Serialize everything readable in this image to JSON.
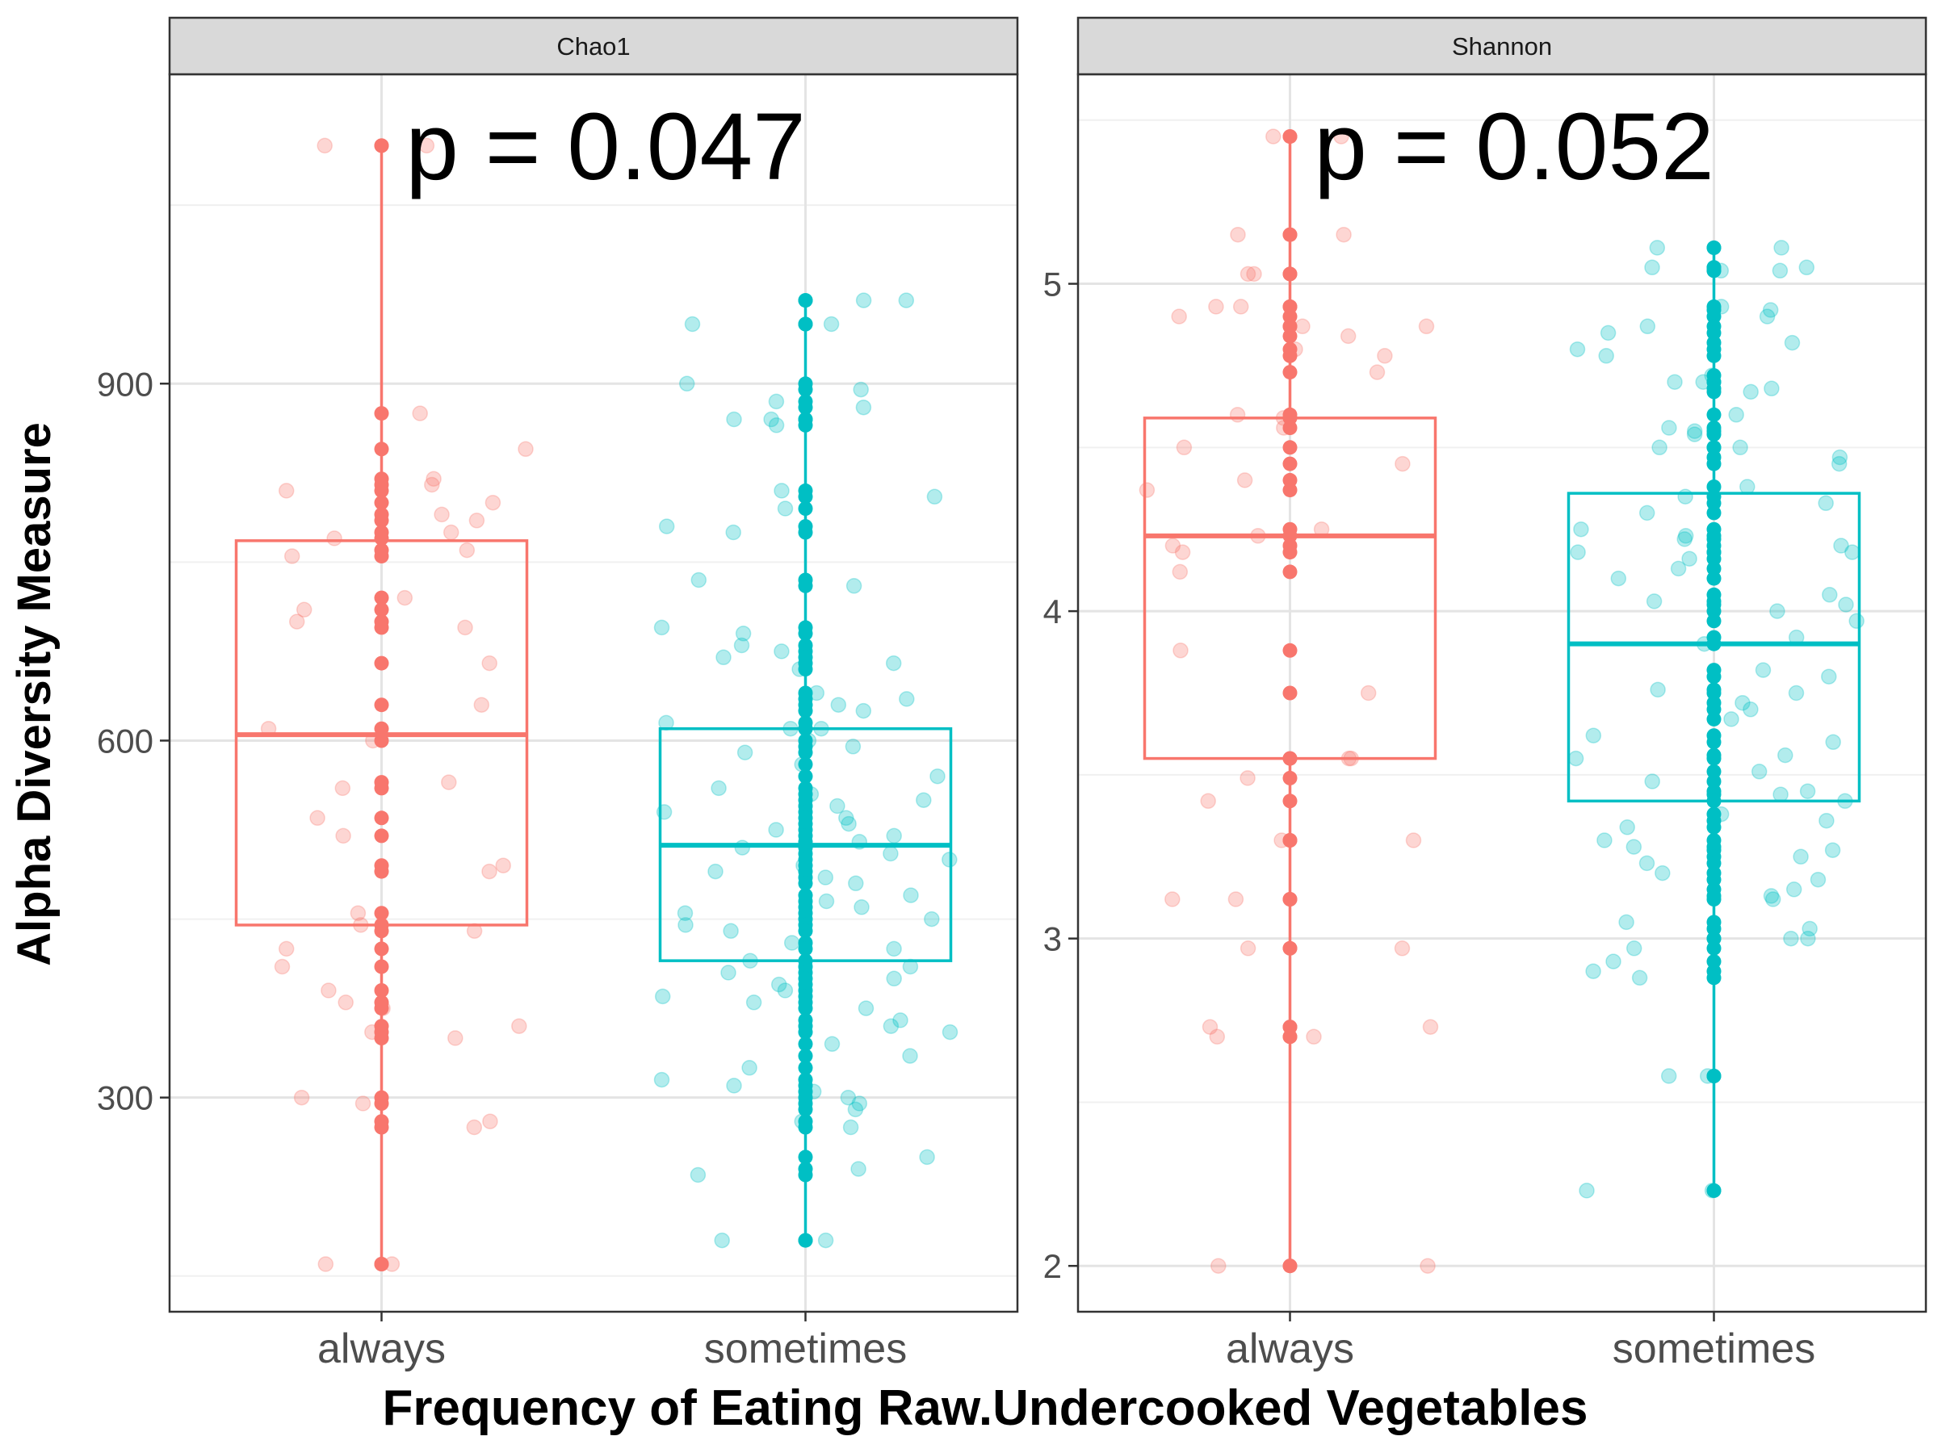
{
  "ylabel": "Alpha Diversity Measure",
  "xlabel": "Frequency of Eating Raw.Undercooked Vegetables",
  "colors": {
    "always": "#F8766D",
    "sometimes": "#00BFC4"
  },
  "chart_data": [
    {
      "type": "box",
      "facet": "Chao1",
      "annotation": "p = 0.047",
      "categories": [
        "always",
        "sometimes"
      ],
      "ylim": [
        120,
        1160
      ],
      "yticks": [
        300,
        600,
        900
      ],
      "boxes": [
        {
          "category": "always",
          "min": 160,
          "q1": 445,
          "median": 605,
          "q3": 768,
          "max": 1100,
          "points": [
            1100,
            1100,
            875,
            845,
            820,
            815,
            810,
            800,
            790,
            785,
            775,
            770,
            760,
            755,
            720,
            710,
            700,
            695,
            665,
            630,
            610,
            600,
            565,
            560,
            535,
            520,
            495,
            490,
            455,
            445,
            440,
            425,
            410,
            390,
            380,
            375,
            360,
            355,
            350,
            300,
            295,
            280,
            275,
            160,
            160
          ]
        },
        {
          "category": "sometimes",
          "min": 180,
          "q1": 415,
          "median": 512,
          "q3": 610,
          "max": 970,
          "points": [
            970,
            970,
            950,
            950,
            900,
            895,
            885,
            880,
            870,
            870,
            865,
            810,
            805,
            795,
            780,
            775,
            735,
            730,
            695,
            690,
            680,
            675,
            670,
            665,
            660,
            640,
            635,
            630,
            625,
            615,
            610,
            610,
            600,
            595,
            590,
            580,
            570,
            560,
            555,
            550,
            545,
            540,
            535,
            530,
            525,
            520,
            515,
            510,
            505,
            500,
            495,
            490,
            485,
            480,
            470,
            465,
            460,
            455,
            450,
            445,
            440,
            430,
            425,
            415,
            410,
            405,
            400,
            395,
            390,
            385,
            380,
            375,
            365,
            360,
            355,
            345,
            335,
            325,
            315,
            310,
            305,
            300,
            295,
            290,
            280,
            275,
            250,
            240,
            235,
            180,
            180
          ]
        }
      ]
    },
    {
      "type": "box",
      "facet": "Shannon",
      "annotation": "p = 0.052",
      "categories": [
        "always",
        "sometimes"
      ],
      "ylim": [
        1.86,
        5.64
      ],
      "yticks": [
        2,
        3,
        4,
        5
      ],
      "boxes": [
        {
          "category": "always",
          "min": 2.0,
          "q1": 3.55,
          "median": 4.23,
          "q3": 4.59,
          "max": 5.45,
          "points": [
            5.45,
            5.45,
            5.15,
            5.15,
            5.03,
            5.03,
            4.93,
            4.93,
            4.9,
            4.87,
            4.87,
            4.84,
            4.8,
            4.78,
            4.73,
            4.6,
            4.59,
            4.56,
            4.5,
            4.45,
            4.4,
            4.37,
            4.25,
            4.23,
            4.2,
            4.18,
            4.12,
            3.88,
            3.75,
            3.55,
            3.55,
            3.49,
            3.42,
            3.3,
            3.3,
            3.12,
            3.12,
            2.97,
            2.97,
            2.73,
            2.73,
            2.7,
            2.7,
            2.0,
            2.0
          ]
        },
        {
          "category": "sometimes",
          "min": 2.23,
          "q1": 3.42,
          "median": 3.9,
          "q3": 4.36,
          "max": 5.11,
          "points": [
            5.11,
            5.11,
            5.05,
            5.05,
            5.04,
            5.04,
            4.93,
            4.92,
            4.9,
            4.87,
            4.85,
            4.82,
            4.8,
            4.78,
            4.72,
            4.7,
            4.7,
            4.68,
            4.67,
            4.6,
            4.56,
            4.55,
            4.54,
            4.5,
            4.5,
            4.47,
            4.45,
            4.38,
            4.35,
            4.33,
            4.3,
            4.25,
            4.23,
            4.22,
            4.2,
            4.18,
            4.18,
            4.16,
            4.13,
            4.1,
            4.05,
            4.03,
            4.02,
            4.0,
            3.97,
            3.92,
            3.9,
            3.82,
            3.8,
            3.76,
            3.75,
            3.72,
            3.7,
            3.67,
            3.62,
            3.6,
            3.56,
            3.55,
            3.51,
            3.48,
            3.45,
            3.44,
            3.42,
            3.38,
            3.36,
            3.34,
            3.3,
            3.28,
            3.27,
            3.25,
            3.23,
            3.2,
            3.18,
            3.15,
            3.13,
            3.12,
            3.05,
            3.03,
            3.0,
            3.0,
            2.97,
            2.93,
            2.9,
            2.88,
            2.58,
            2.58,
            2.23,
            2.23
          ]
        }
      ]
    }
  ]
}
